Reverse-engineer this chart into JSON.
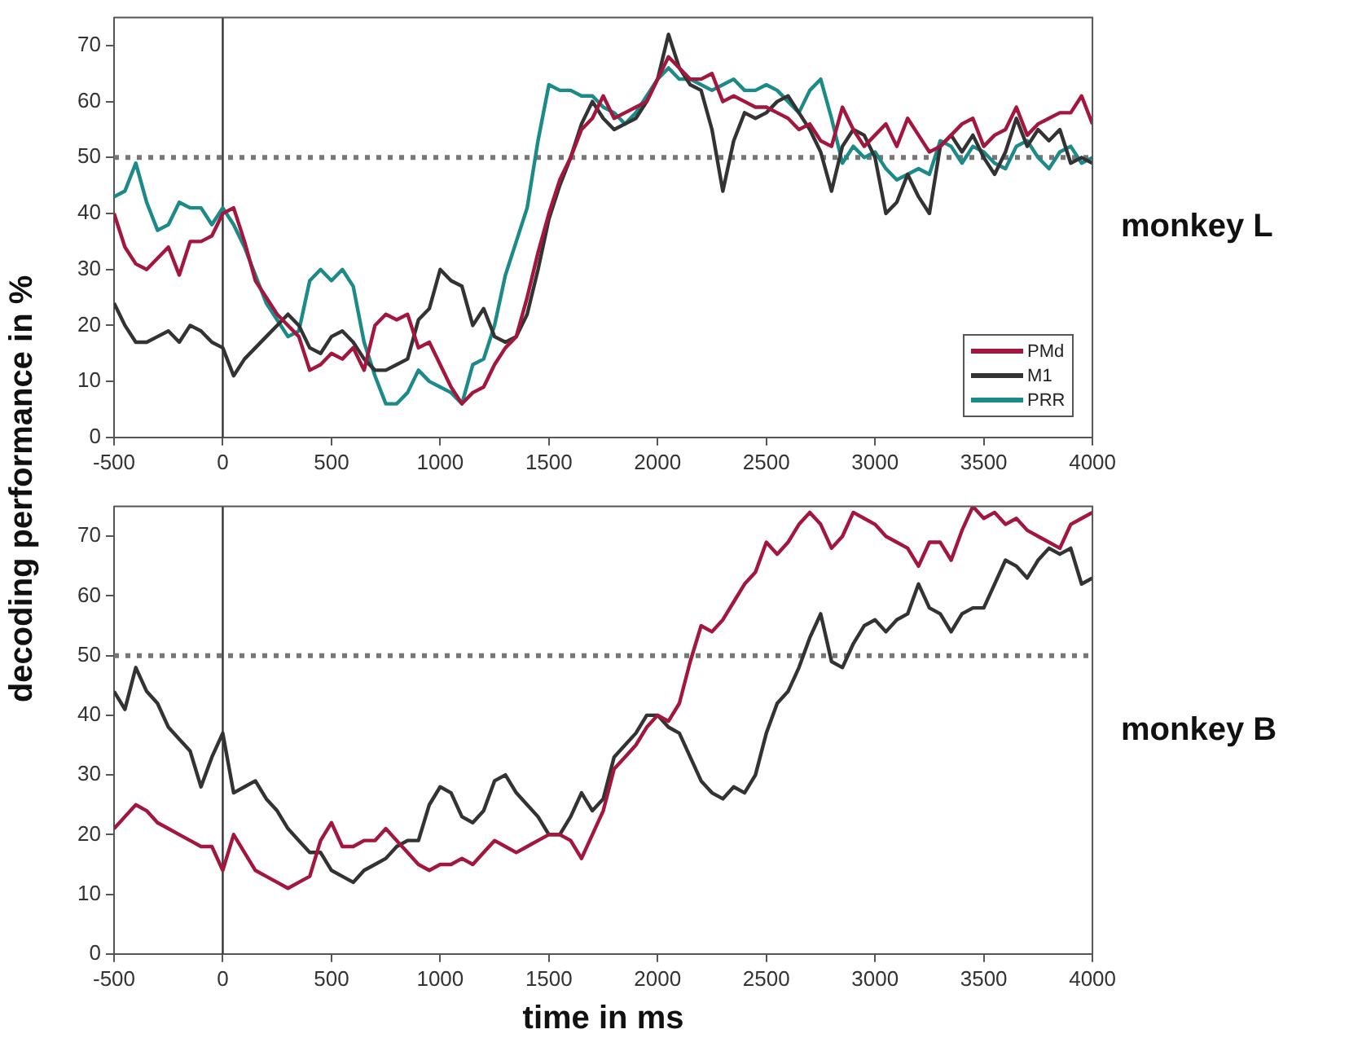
{
  "chart_data": [
    {
      "type": "line",
      "ylabel": "decoding performance in %",
      "annotations": [
        "monkey L"
      ],
      "x": [
        -500,
        -450,
        -400,
        -350,
        -300,
        -250,
        -200,
        -150,
        -100,
        -50,
        0,
        50,
        100,
        150,
        200,
        250,
        300,
        350,
        400,
        450,
        500,
        550,
        600,
        650,
        700,
        750,
        800,
        850,
        900,
        950,
        1000,
        1050,
        1100,
        1150,
        1200,
        1250,
        1300,
        1350,
        1400,
        1450,
        1500,
        1550,
        1600,
        1650,
        1700,
        1750,
        1800,
        1850,
        1900,
        1950,
        2000,
        2050,
        2100,
        2150,
        2200,
        2250,
        2300,
        2350,
        2400,
        2450,
        2500,
        2550,
        2600,
        2650,
        2700,
        2750,
        2800,
        2850,
        2900,
        2950,
        3000,
        3050,
        3100,
        3150,
        3200,
        3250,
        3300,
        3350,
        3400,
        3450,
        3500,
        3550,
        3600,
        3650,
        3700,
        3750,
        3800,
        3850,
        3900,
        3950,
        4000
      ],
      "series": [
        {
          "name": "PMd",
          "color": "#a3173f",
          "values": [
            40,
            34,
            31,
            30,
            32,
            34,
            29,
            35,
            35,
            36,
            40,
            41,
            35,
            28,
            25,
            22,
            20,
            18,
            12,
            13,
            15,
            14,
            16,
            12,
            20,
            22,
            21,
            22,
            16,
            17,
            13,
            9,
            6,
            8,
            9,
            13,
            16,
            18,
            25,
            33,
            40,
            46,
            50,
            55,
            57,
            61,
            57,
            58,
            59,
            60,
            64,
            68,
            66,
            64,
            64,
            65,
            60,
            61,
            60,
            59,
            59,
            58,
            57,
            55,
            56,
            53,
            52,
            59,
            55,
            52,
            54,
            56,
            52,
            57,
            54,
            51,
            52,
            54,
            56,
            57,
            52,
            54,
            55,
            59,
            54,
            56,
            57,
            58,
            58,
            61,
            56
          ]
        },
        {
          "name": "M1",
          "color": "#333333",
          "values": [
            24,
            20,
            17,
            17,
            18,
            19,
            17,
            20,
            19,
            17,
            16,
            11,
            14,
            16,
            18,
            20,
            22,
            20,
            16,
            15,
            18,
            19,
            17,
            14,
            12,
            12,
            13,
            14,
            21,
            23,
            30,
            28,
            27,
            20,
            23,
            18,
            17,
            18,
            22,
            30,
            39,
            45,
            50,
            56,
            60,
            57,
            55,
            56,
            57,
            60,
            64,
            72,
            66,
            63,
            62,
            55,
            44,
            53,
            58,
            57,
            58,
            60,
            61,
            58,
            55,
            51,
            44,
            52,
            55,
            54,
            50,
            40,
            42,
            47,
            43,
            40,
            52,
            54,
            51,
            54,
            50,
            47,
            51,
            57,
            52,
            55,
            53,
            55,
            49,
            50,
            49
          ]
        },
        {
          "name": "PRR",
          "color": "#1b8a88",
          "values": [
            43,
            44,
            49,
            42,
            37,
            38,
            42,
            41,
            41,
            38,
            41,
            38,
            34,
            29,
            24,
            21,
            18,
            19,
            28,
            30,
            28,
            30,
            27,
            17,
            11,
            6,
            6,
            8,
            12,
            10,
            9,
            8,
            6,
            13,
            14,
            20,
            29,
            35,
            41,
            53,
            63,
            62,
            62,
            61,
            61,
            59,
            58,
            56,
            58,
            61,
            64,
            66,
            64,
            64,
            63,
            62,
            63,
            64,
            62,
            62,
            63,
            62,
            60,
            58,
            62,
            64,
            57,
            49,
            52,
            50,
            51,
            48,
            46,
            47,
            48,
            47,
            53,
            52,
            49,
            52,
            51,
            49,
            48,
            52,
            53,
            50,
            48,
            51,
            52,
            49,
            50
          ]
        }
      ],
      "xlim": [
        -500,
        4000
      ],
      "xticks": [
        -500,
        0,
        500,
        1000,
        1500,
        2000,
        2500,
        3000,
        3500,
        4000
      ],
      "ylim": [
        0,
        75
      ],
      "yticks": [
        0,
        10,
        20,
        30,
        40,
        50,
        60,
        70
      ],
      "ref_lines": [
        {
          "axis": "y",
          "value": 50,
          "color": "#777777",
          "line_style": "dotted"
        },
        {
          "axis": "x",
          "value": 0,
          "color": "#333333",
          "line_style": "solid"
        }
      ],
      "grid": false,
      "legend": "bottom right"
    },
    {
      "type": "line",
      "xlabel": "time in ms",
      "annotations": [
        "monkey B"
      ],
      "x": [
        -500,
        -450,
        -400,
        -350,
        -300,
        -250,
        -200,
        -150,
        -100,
        -50,
        0,
        50,
        100,
        150,
        200,
        250,
        300,
        350,
        400,
        450,
        500,
        550,
        600,
        650,
        700,
        750,
        800,
        850,
        900,
        950,
        1000,
        1050,
        1100,
        1150,
        1200,
        1250,
        1300,
        1350,
        1400,
        1450,
        1500,
        1550,
        1600,
        1650,
        1700,
        1750,
        1800,
        1850,
        1900,
        1950,
        2000,
        2050,
        2100,
        2150,
        2200,
        2250,
        2300,
        2350,
        2400,
        2450,
        2500,
        2550,
        2600,
        2650,
        2700,
        2750,
        2800,
        2850,
        2900,
        2950,
        3000,
        3050,
        3100,
        3150,
        3200,
        3250,
        3300,
        3350,
        3400,
        3450,
        3500,
        3550,
        3600,
        3650,
        3700,
        3750,
        3800,
        3850,
        3900,
        3950,
        4000
      ],
      "series": [
        {
          "color": "#a3173f",
          "values": [
            21,
            23,
            25,
            24,
            22,
            21,
            20,
            19,
            18,
            18,
            14,
            20,
            17,
            14,
            13,
            12,
            11,
            12,
            13,
            19,
            22,
            18,
            18,
            19,
            19,
            21,
            19,
            17,
            15,
            14,
            15,
            15,
            16,
            15,
            17,
            19,
            18,
            17,
            18,
            19,
            20,
            20,
            19,
            16,
            20,
            24,
            31,
            33,
            35,
            38,
            40,
            39,
            42,
            49,
            55,
            54,
            56,
            59,
            62,
            64,
            69,
            67,
            69,
            72,
            74,
            72,
            68,
            70,
            74,
            73,
            72,
            70,
            69,
            68,
            65,
            69,
            69,
            66,
            71,
            75,
            73,
            74,
            72,
            73,
            71,
            70,
            69,
            68,
            72,
            73,
            74
          ]
        },
        {
          "color": "#333333",
          "values": [
            44,
            41,
            48,
            44,
            42,
            38,
            36,
            34,
            28,
            33,
            37,
            27,
            28,
            29,
            26,
            24,
            21,
            19,
            17,
            17,
            14,
            13,
            12,
            14,
            15,
            16,
            18,
            19,
            19,
            25,
            28,
            27,
            23,
            22,
            24,
            29,
            30,
            27,
            25,
            23,
            20,
            20,
            23,
            27,
            24,
            26,
            33,
            35,
            37,
            40,
            40,
            38,
            37,
            33,
            29,
            27,
            26,
            28,
            27,
            30,
            37,
            42,
            44,
            48,
            53,
            57,
            49,
            48,
            52,
            55,
            56,
            54,
            56,
            57,
            62,
            58,
            57,
            54,
            57,
            58,
            58,
            62,
            66,
            65,
            63,
            66,
            68,
            67,
            68,
            62,
            63
          ]
        }
      ],
      "xlim": [
        -500,
        4000
      ],
      "xticks": [
        -500,
        0,
        500,
        1000,
        1500,
        2000,
        2500,
        3000,
        3500,
        4000
      ],
      "ylim": [
        0,
        75
      ],
      "yticks": [
        0,
        10,
        20,
        30,
        40,
        50,
        60,
        70
      ],
      "ref_lines": [
        {
          "axis": "y",
          "value": 50,
          "color": "#777777",
          "line_style": "dotted"
        },
        {
          "axis": "x",
          "value": 0,
          "color": "#333333",
          "line_style": "solid"
        }
      ],
      "grid": false
    }
  ]
}
